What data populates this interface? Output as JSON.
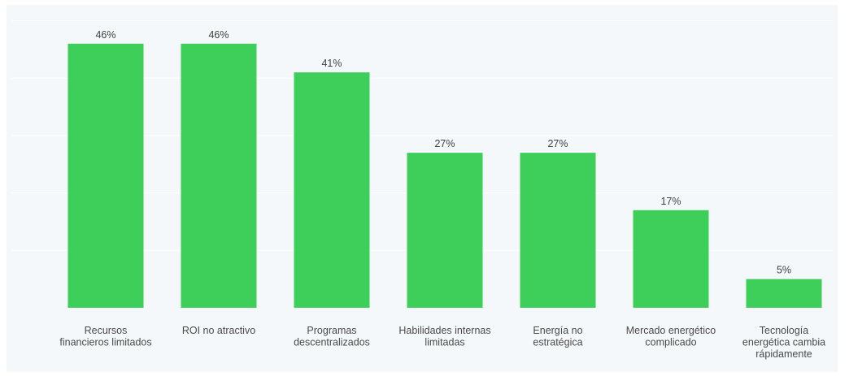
{
  "chart_data": {
    "type": "bar",
    "title": "",
    "xlabel": "",
    "ylabel": "",
    "ylim": [
      0,
      50
    ],
    "grid": true,
    "categories": [
      [
        "Recursos",
        "financieros limitados"
      ],
      [
        "ROI no atractivo"
      ],
      [
        "Programas",
        "descentralizados"
      ],
      [
        "Habilidades internas",
        "limitadas"
      ],
      [
        "Energía no",
        "estratégica"
      ],
      [
        "Mercado energético",
        "complicado"
      ],
      [
        "Tecnología",
        "energética cambia",
        "rápidamente"
      ]
    ],
    "values": [
      46,
      46,
      41,
      27,
      27,
      17,
      5
    ],
    "value_labels": [
      "46%",
      "46%",
      "41%",
      "27%",
      "27%",
      "17%",
      "5%"
    ],
    "colors": {
      "bar": "#3ecf5a",
      "background": "#f5f8fb",
      "label": "#404040"
    }
  }
}
